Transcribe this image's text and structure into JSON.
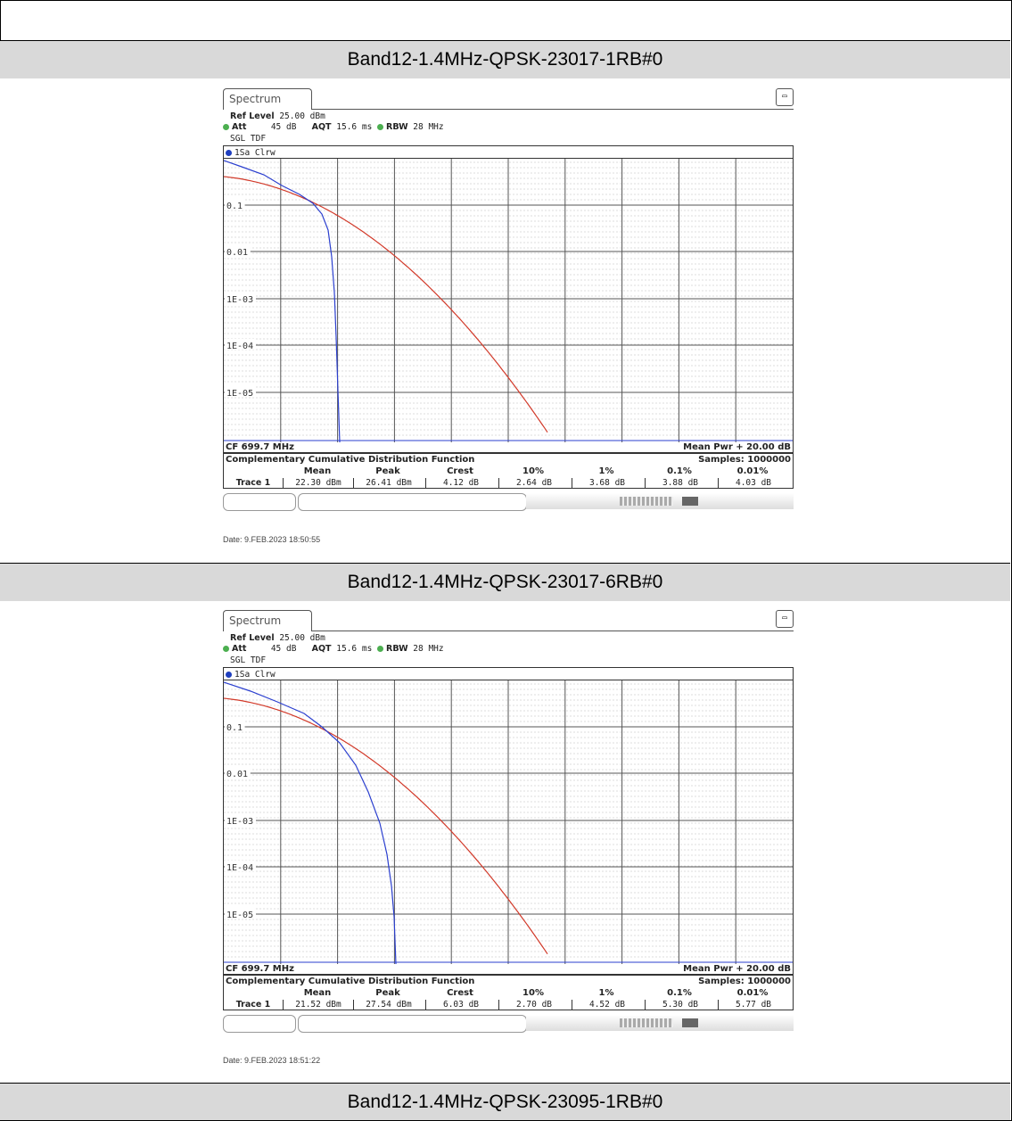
{
  "sections": [
    {
      "title": "Band12-1.4MHz-QPSK-23017-1RB#0",
      "tab": "Spectrum",
      "ref_level_label": "Ref Level",
      "ref_level_value": "25.00 dBm",
      "att_label": "Att",
      "att_value": "45 dB",
      "aqt_label": "AQT",
      "aqt_value": "15.6 ms",
      "rbw_label": "RBW",
      "rbw_value": "28 MHz",
      "mode": "SGL TDF",
      "trace_label": "1Sa Clrw",
      "cf": "CF 699.7 MHz",
      "mean_pwr": "Mean Pwr + 20.00 dB",
      "table_title": "Complementary Cumulative Distribution Function",
      "samples": "Samples: 1000000",
      "row_label": "Trace 1",
      "headers": [
        "Mean",
        "Peak",
        "Crest",
        "10%",
        "1%",
        "0.1%",
        "0.01%"
      ],
      "values": [
        "22.30 dBm",
        "26.41 dBm",
        "4.12 dB",
        "2.64 dB",
        "3.68 dB",
        "3.88 dB",
        "4.03 dB"
      ],
      "date": "Date: 9.FEB.2023  18:50:55",
      "ylabels": [
        "0.1",
        "0.01",
        "1E-03",
        "1E-04",
        "1E-05"
      ]
    },
    {
      "title": "Band12-1.4MHz-QPSK-23017-6RB#0",
      "tab": "Spectrum",
      "ref_level_label": "Ref Level",
      "ref_level_value": "25.00 dBm",
      "att_label": "Att",
      "att_value": "45 dB",
      "aqt_label": "AQT",
      "aqt_value": "15.6 ms",
      "rbw_label": "RBW",
      "rbw_value": "28 MHz",
      "mode": "SGL TDF",
      "trace_label": "1Sa Clrw",
      "cf": "CF 699.7 MHz",
      "mean_pwr": "Mean Pwr + 20.00 dB",
      "table_title": "Complementary Cumulative Distribution Function",
      "samples": "Samples: 1000000",
      "row_label": "Trace 1",
      "headers": [
        "Mean",
        "Peak",
        "Crest",
        "10%",
        "1%",
        "0.1%",
        "0.01%"
      ],
      "values": [
        "21.52 dBm",
        "27.54 dBm",
        "6.03 dB",
        "2.70 dB",
        "4.52 dB",
        "5.30 dB",
        "5.77 dB"
      ],
      "date": "Date: 9.FEB.2023  18:51:22",
      "ylabels": [
        "0.1",
        "0.01",
        "1E-03",
        "1E-04",
        "1E-05"
      ]
    }
  ],
  "footer_title": "Band12-1.4MHz-QPSK-23095-1RB#0",
  "colors": {
    "band_bg": "#d9d9d9",
    "trace_blue": "#2b3fcf",
    "trace_red": "#d23a2a",
    "grid": "#555555"
  }
}
